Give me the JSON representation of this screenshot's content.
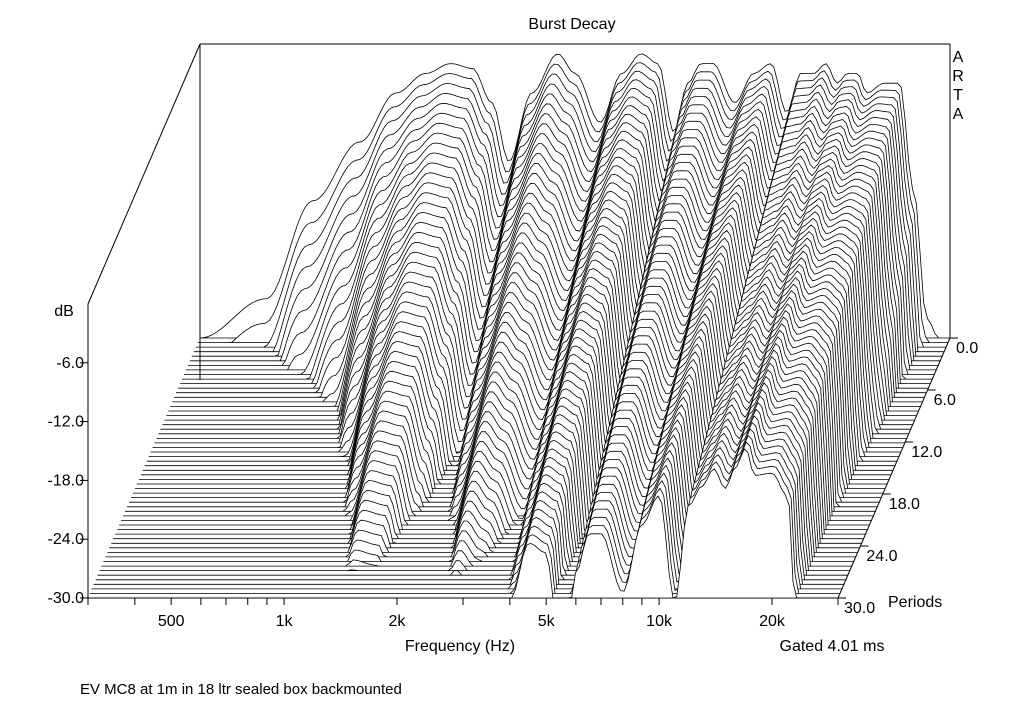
{
  "chart_data": {
    "type": "waterfall",
    "title": "Burst Decay",
    "brand": "ARTA",
    "xlabel": "Frequency (Hz)",
    "ylabel": "dB",
    "zlabel": "Periods",
    "x_scale": "log",
    "xlim": [
      300,
      30000
    ],
    "ylim": [
      -30,
      0
    ],
    "zlim": [
      0,
      30
    ],
    "x_ticks": [
      {
        "value": 500,
        "label": "500"
      },
      {
        "value": 1000,
        "label": "1k"
      },
      {
        "value": 2000,
        "label": "2k"
      },
      {
        "value": 5000,
        "label": "5k"
      },
      {
        "value": 10000,
        "label": "10k"
      },
      {
        "value": 20000,
        "label": "20k"
      }
    ],
    "y_ticks": [
      {
        "value": -6,
        "label": "-6.0"
      },
      {
        "value": -12,
        "label": "-12.0"
      },
      {
        "value": -18,
        "label": "-18.0"
      },
      {
        "value": -24,
        "label": "-24.0"
      },
      {
        "value": -30,
        "label": "-30.0"
      }
    ],
    "z_ticks": [
      {
        "value": 0,
        "label": "0.0"
      },
      {
        "value": 6,
        "label": "6.0"
      },
      {
        "value": 12,
        "label": "12.0"
      },
      {
        "value": 18,
        "label": "18.0"
      },
      {
        "value": 24,
        "label": "24.0"
      },
      {
        "value": 30,
        "label": "30.0"
      }
    ],
    "z_unit": "Periods",
    "gate_note": "Gated 4.01 ms",
    "slice_count": 58,
    "frequency_hz": [
      300,
      450,
      600,
      800,
      1000,
      1200,
      1400,
      1600,
      1800,
      2000,
      2300,
      2700,
      3000,
      3500,
      4000,
      4500,
      5000,
      5500,
      6000,
      6500,
      7000,
      8000,
      9000,
      10000,
      11000,
      12000,
      13000,
      14000,
      15000,
      16000,
      17000,
      18000,
      20000,
      22000,
      24000,
      26000,
      28000,
      30000
    ],
    "front_slice_db": [
      -30,
      -26,
      -16,
      -10,
      -5,
      -3,
      -2,
      -2.5,
      -6,
      -12,
      -5,
      -1,
      -3,
      -8,
      -3,
      -1,
      -2,
      -9,
      -4,
      -2,
      -2,
      -6,
      -3,
      -2,
      -7,
      -3,
      -3,
      -2,
      -4,
      -3,
      -3,
      -5,
      -4,
      -4,
      -15,
      -28,
      -30,
      -30
    ],
    "decay_rate_db_per_period": [
      3,
      3,
      2.6,
      2.0,
      1.4,
      1.0,
      0.8,
      0.8,
      0.9,
      1.0,
      0.9,
      0.8,
      0.8,
      0.8,
      0.7,
      0.6,
      0.6,
      0.8,
      0.6,
      0.55,
      0.55,
      0.6,
      0.5,
      0.45,
      0.6,
      0.45,
      0.4,
      0.38,
      0.38,
      0.35,
      0.3,
      0.32,
      0.34,
      0.4,
      0.8,
      2,
      3,
      3
    ]
  },
  "caption": "EV MC8 at 1m in 18 ltr sealed box backmounted"
}
